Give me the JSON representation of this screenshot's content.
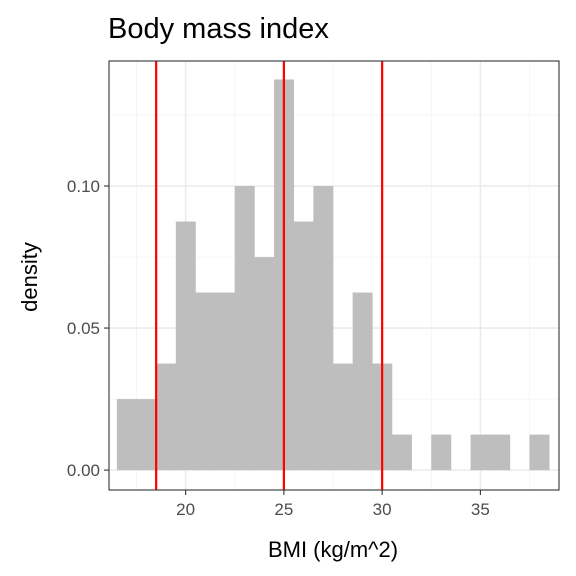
{
  "chart_data": {
    "type": "histogram",
    "title": "Body mass index",
    "xlabel": "BMI (kg/m^2)",
    "ylabel": "density",
    "xlim": [
      16.1,
      39.0
    ],
    "ylim": [
      -0.007,
      0.144
    ],
    "x_ticks": [
      20,
      25,
      30,
      35
    ],
    "x_tick_labels": [
      "20",
      "25",
      "30",
      "35"
    ],
    "y_ticks": [
      0.0,
      0.05,
      0.1
    ],
    "y_tick_labels": [
      "0.00",
      "0.05",
      "0.10"
    ],
    "bin_width": 1.0,
    "bins": [
      {
        "start": 16.5,
        "value": 0.025
      },
      {
        "start": 17.5,
        "value": 0.025
      },
      {
        "start": 18.5,
        "value": 0.0375
      },
      {
        "start": 19.5,
        "value": 0.0875
      },
      {
        "start": 20.5,
        "value": 0.0625
      },
      {
        "start": 21.5,
        "value": 0.0625
      },
      {
        "start": 22.5,
        "value": 0.1
      },
      {
        "start": 23.5,
        "value": 0.075
      },
      {
        "start": 24.5,
        "value": 0.1375
      },
      {
        "start": 25.5,
        "value": 0.0875
      },
      {
        "start": 26.5,
        "value": 0.1
      },
      {
        "start": 27.5,
        "value": 0.0375
      },
      {
        "start": 28.5,
        "value": 0.0625
      },
      {
        "start": 29.5,
        "value": 0.0375
      },
      {
        "start": 30.5,
        "value": 0.0125
      },
      {
        "start": 31.5,
        "value": 0
      },
      {
        "start": 32.5,
        "value": 0.0125
      },
      {
        "start": 33.5,
        "value": 0
      },
      {
        "start": 34.5,
        "value": 0.0125
      },
      {
        "start": 35.5,
        "value": 0.0125
      },
      {
        "start": 36.5,
        "value": 0
      },
      {
        "start": 37.5,
        "value": 0.0125
      }
    ],
    "reference_lines": [
      18.5,
      25,
      30
    ],
    "grid": true,
    "colors": {
      "bars": "#bebebe",
      "reference_line": "#ff0000",
      "grid_major": "#ebebeb",
      "grid_minor": "#f5f5f5",
      "panel_border": "#333333",
      "tick_text": "#4d4d4d"
    }
  }
}
